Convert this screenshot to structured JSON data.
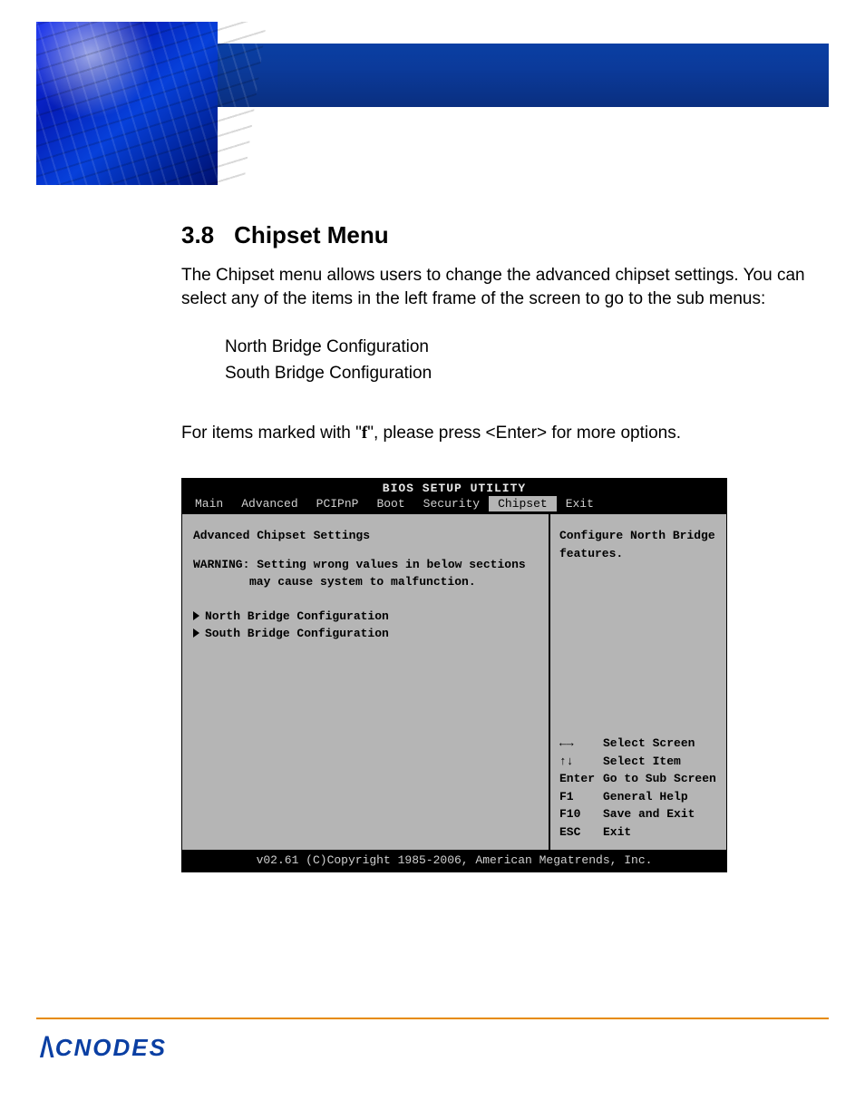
{
  "brand": {
    "name": "CNODES"
  },
  "section": {
    "number": "3.8",
    "title": "Chipset Menu",
    "intro": "The Chipset menu allows users to change the advanced chipset settings. You can select any of the items in the left frame of the screen to go to the sub menus:",
    "sub_items": [
      "North Bridge Configuration",
      "South Bridge Configuration"
    ],
    "note_prefix": "For items marked with \"",
    "note_glyph": "f",
    "note_suffix": "\", please press <Enter> for more options."
  },
  "bios": {
    "title": "BIOS SETUP UTILITY",
    "tabs": [
      "Main",
      "Advanced",
      "PCIPnP",
      "Boot",
      "Security",
      "Chipset",
      "Exit"
    ],
    "active_tab": "Chipset",
    "left": {
      "heading": "Advanced Chipset Settings",
      "warning_label": "WARNING:",
      "warning_line1": "Setting wrong values in below sections",
      "warning_line2": "may cause system to malfunction.",
      "menu": [
        "North Bridge Configuration",
        "South Bridge Configuration"
      ]
    },
    "right": {
      "description": "Configure North Bridge features.",
      "keys": [
        {
          "k": "←→",
          "v": "Select Screen"
        },
        {
          "k": "↑↓",
          "v": "Select Item"
        },
        {
          "k": "Enter",
          "v": "Go to Sub Screen"
        },
        {
          "k": "F1",
          "v": "General Help"
        },
        {
          "k": "F10",
          "v": "Save and Exit"
        },
        {
          "k": "ESC",
          "v": "Exit"
        }
      ]
    },
    "footer": "v02.61 (C)Copyright 1985-2006, American Megatrends, Inc."
  },
  "colors": {
    "banner_blue": "#0a3fa3",
    "bios_bg": "#b5b5b5",
    "footer_rule": "#e68a00"
  }
}
